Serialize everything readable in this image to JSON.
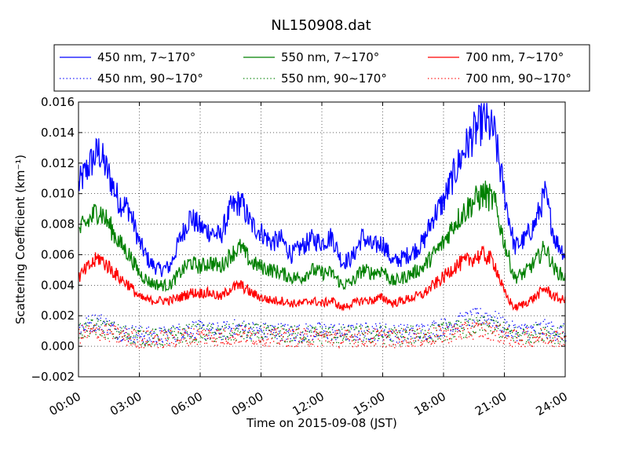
{
  "chart_data": {
    "type": "line",
    "title": "NL150908.dat",
    "xlabel": "Time on 2015-09-08 (JST)",
    "ylabel": "Scattering Coefficient (km⁻¹)",
    "xlim": [
      "00:00",
      "24:00"
    ],
    "ylim": [
      -0.002,
      0.016
    ],
    "x_ticks": [
      "00:00",
      "03:00",
      "06:00",
      "09:00",
      "12:00",
      "15:00",
      "18:00",
      "21:00",
      "24:00"
    ],
    "y_ticks": [
      "−0.002",
      "0.000",
      "0.002",
      "0.004",
      "0.006",
      "0.008",
      "0.010",
      "0.012",
      "0.014",
      "0.016"
    ],
    "y_tick_values": [
      -0.002,
      0.0,
      0.002,
      0.004,
      0.006,
      0.008,
      0.01,
      0.012,
      0.014,
      0.016
    ],
    "grid": true,
    "legend_position": "top, above plot, 3 columns",
    "x_hours": [
      0,
      0.5,
      1,
      1.5,
      2,
      2.5,
      3,
      3.5,
      4,
      4.5,
      5,
      5.5,
      6,
      6.5,
      7,
      7.5,
      8,
      8.5,
      9,
      9.5,
      10,
      10.5,
      11,
      11.5,
      12,
      12.5,
      13,
      13.5,
      14,
      14.5,
      15,
      15.5,
      16,
      16.5,
      17,
      17.5,
      18,
      18.5,
      19,
      19.5,
      20,
      20.5,
      21,
      21.5,
      22,
      22.5,
      23,
      23.5,
      24
    ],
    "series": [
      {
        "name": "450 nm, 7∼170°",
        "color": "#0000ff",
        "style": "solid",
        "values": [
          0.0105,
          0.0118,
          0.0128,
          0.0112,
          0.0095,
          0.009,
          0.0068,
          0.0055,
          0.005,
          0.0052,
          0.007,
          0.0085,
          0.0078,
          0.0075,
          0.0072,
          0.009,
          0.0095,
          0.008,
          0.0075,
          0.0068,
          0.007,
          0.006,
          0.0065,
          0.007,
          0.0068,
          0.0072,
          0.0055,
          0.0058,
          0.0072,
          0.0065,
          0.0068,
          0.0055,
          0.0058,
          0.0062,
          0.0068,
          0.0085,
          0.0095,
          0.0112,
          0.0128,
          0.014,
          0.0148,
          0.014,
          0.01,
          0.0065,
          0.007,
          0.008,
          0.01,
          0.007,
          0.006
        ]
      },
      {
        "name": "450 nm, 90∼170°",
        "color": "#0000ff",
        "style": "dotted",
        "values": [
          0.0012,
          0.0015,
          0.0017,
          0.0013,
          0.001,
          0.0009,
          0.0008,
          0.0007,
          0.0007,
          0.0008,
          0.001,
          0.0012,
          0.0011,
          0.001,
          0.001,
          0.0012,
          0.0012,
          0.0011,
          0.001,
          0.001,
          0.001,
          0.0009,
          0.0009,
          0.001,
          0.001,
          0.001,
          0.0009,
          0.0009,
          0.001,
          0.001,
          0.001,
          0.0009,
          0.0009,
          0.0009,
          0.001,
          0.0012,
          0.0013,
          0.0015,
          0.0017,
          0.0019,
          0.002,
          0.0018,
          0.0013,
          0.001,
          0.001,
          0.0011,
          0.0012,
          0.001,
          0.0009
        ]
      },
      {
        "name": "550 nm, 7∼170°",
        "color": "#008000",
        "style": "solid",
        "values": [
          0.0075,
          0.0082,
          0.009,
          0.008,
          0.0068,
          0.006,
          0.0048,
          0.0042,
          0.004,
          0.004,
          0.0048,
          0.0055,
          0.0052,
          0.0055,
          0.0052,
          0.006,
          0.0065,
          0.0055,
          0.0052,
          0.005,
          0.0048,
          0.0045,
          0.0045,
          0.005,
          0.0048,
          0.0048,
          0.004,
          0.0042,
          0.005,
          0.0048,
          0.005,
          0.0042,
          0.0045,
          0.0048,
          0.0052,
          0.006,
          0.0068,
          0.008,
          0.0088,
          0.0095,
          0.01,
          0.0095,
          0.0068,
          0.0045,
          0.0048,
          0.0055,
          0.0065,
          0.005,
          0.0045
        ]
      },
      {
        "name": "550 nm, 90∼170°",
        "color": "#008000",
        "style": "dotted",
        "values": [
          0.001,
          0.0012,
          0.0013,
          0.0011,
          0.0009,
          0.0008,
          0.0007,
          0.0006,
          0.0006,
          0.0007,
          0.0008,
          0.0009,
          0.0009,
          0.0009,
          0.0008,
          0.0009,
          0.001,
          0.0009,
          0.0009,
          0.0008,
          0.0008,
          0.0008,
          0.0008,
          0.0008,
          0.0008,
          0.0008,
          0.0007,
          0.0008,
          0.0008,
          0.0008,
          0.0008,
          0.0007,
          0.0007,
          0.0008,
          0.0008,
          0.0009,
          0.001,
          0.0011,
          0.0012,
          0.0013,
          0.0014,
          0.0013,
          0.001,
          0.0008,
          0.0008,
          0.0009,
          0.001,
          0.0008,
          0.0008
        ]
      },
      {
        "name": "700 nm, 7∼170°",
        "color": "#ff0000",
        "style": "solid",
        "values": [
          0.0045,
          0.0052,
          0.0058,
          0.0052,
          0.0045,
          0.004,
          0.0032,
          0.003,
          0.003,
          0.003,
          0.0032,
          0.0035,
          0.0035,
          0.0035,
          0.0032,
          0.0038,
          0.004,
          0.0035,
          0.0032,
          0.003,
          0.003,
          0.0028,
          0.0028,
          0.003,
          0.0028,
          0.003,
          0.0025,
          0.0028,
          0.003,
          0.003,
          0.0032,
          0.0028,
          0.003,
          0.0032,
          0.0034,
          0.004,
          0.0045,
          0.0052,
          0.0055,
          0.0058,
          0.006,
          0.0055,
          0.0035,
          0.0025,
          0.0028,
          0.0032,
          0.0038,
          0.0032,
          0.003
        ]
      },
      {
        "name": "700 nm, 90∼170°",
        "color": "#ff0000",
        "style": "dotted",
        "values": [
          0.0008,
          0.0009,
          0.001,
          0.0009,
          0.0007,
          0.0006,
          0.0005,
          0.0005,
          0.0005,
          0.0005,
          0.0006,
          0.0007,
          0.0007,
          0.0007,
          0.0006,
          0.0007,
          0.0008,
          0.0007,
          0.0007,
          0.0006,
          0.0006,
          0.0006,
          0.0006,
          0.0006,
          0.0006,
          0.0006,
          0.0005,
          0.0006,
          0.0006,
          0.0006,
          0.0006,
          0.0005,
          0.0006,
          0.0006,
          0.0006,
          0.0007,
          0.0008,
          0.0009,
          0.001,
          0.0011,
          0.0011,
          0.001,
          0.0007,
          0.0005,
          0.0006,
          0.0006,
          0.0007,
          0.0006,
          0.0006
        ]
      }
    ]
  }
}
